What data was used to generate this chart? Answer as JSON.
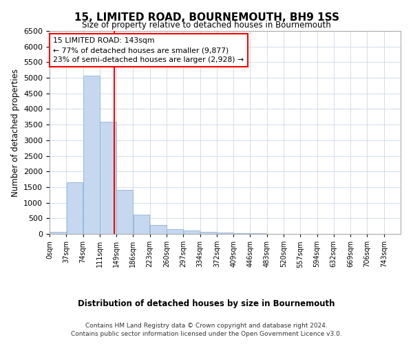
{
  "title": "15, LIMITED ROAD, BOURNEMOUTH, BH9 1SS",
  "subtitle": "Size of property relative to detached houses in Bournemouth",
  "xlabel": "Distribution of detached houses by size in Bournemouth",
  "ylabel": "Number of detached properties",
  "footer_line1": "Contains HM Land Registry data © Crown copyright and database right 2024.",
  "footer_line2": "Contains public sector information licensed under the Open Government Licence v3.0.",
  "bin_labels": [
    "0sqm",
    "37sqm",
    "74sqm",
    "111sqm",
    "149sqm",
    "186sqm",
    "223sqm",
    "260sqm",
    "297sqm",
    "334sqm",
    "372sqm",
    "409sqm",
    "446sqm",
    "483sqm",
    "520sqm",
    "557sqm",
    "594sqm",
    "632sqm",
    "669sqm",
    "706sqm",
    "743sqm"
  ],
  "bar_values": [
    70,
    1650,
    5060,
    3600,
    1400,
    620,
    290,
    145,
    100,
    75,
    55,
    30,
    20,
    10,
    5,
    5,
    5,
    0,
    0,
    0
  ],
  "bar_color": "#c5d8ef",
  "bar_edge_color": "#91b4d5",
  "grid_color": "#d0dcea",
  "vline_x": 143,
  "vline_color": "red",
  "annotation_text": "15 LIMITED ROAD: 143sqm\n← 77% of detached houses are smaller (9,877)\n23% of semi-detached houses are larger (2,928) →",
  "annotation_box_color": "white",
  "annotation_box_edge_color": "red",
  "ylim": [
    0,
    6500
  ],
  "bin_width": 37,
  "n_bins": 20,
  "property_sqm": 143,
  "background_color": "#ffffff",
  "plot_bg_color": "#ffffff"
}
